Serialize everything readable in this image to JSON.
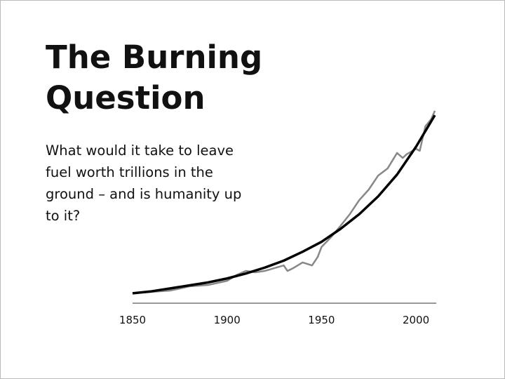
{
  "chart_data": {
    "type": "line",
    "title": "The Burning Question",
    "subtitle": "What would it take to leave fuel worth trillions in the ground – and is humanity up to it?",
    "xlim": [
      1850,
      2010
    ],
    "xticks": [
      1850,
      1900,
      1950,
      2000
    ],
    "ylim": [
      0,
      100
    ],
    "series": [
      {
        "color": "#888888",
        "x": [
          1850,
          1860,
          1870,
          1875,
          1880,
          1890,
          1900,
          1905,
          1910,
          1915,
          1920,
          1925,
          1930,
          1932,
          1935,
          1940,
          1945,
          1948,
          1950,
          1955,
          1960,
          1965,
          1970,
          1975,
          1980,
          1985,
          1990,
          1993,
          1995,
          2000,
          2002,
          2005,
          2008,
          2010
        ],
        "values": [
          5,
          5.7,
          6.4,
          7.4,
          8.5,
          9.2,
          11.3,
          14.2,
          16.3,
          15.6,
          16.3,
          17.7,
          19.1,
          16.3,
          17.7,
          20.6,
          19.1,
          23.4,
          28.4,
          33.3,
          39,
          45,
          52.1,
          57.4,
          64.5,
          68.1,
          75.9,
          73.4,
          75.2,
          78,
          77,
          89.4,
          92.9,
          97.2
        ]
      },
      {
        "color": "#000000",
        "x": [
          1850,
          1860,
          1870,
          1880,
          1890,
          1900,
          1910,
          1920,
          1930,
          1940,
          1950,
          1960,
          1970,
          1980,
          1990,
          2000,
          2010
        ],
        "values": [
          5,
          6,
          7.5,
          9,
          10.5,
          12.5,
          15,
          18,
          21.5,
          26,
          31,
          37.5,
          45,
          54,
          65,
          79,
          95
        ]
      }
    ]
  }
}
